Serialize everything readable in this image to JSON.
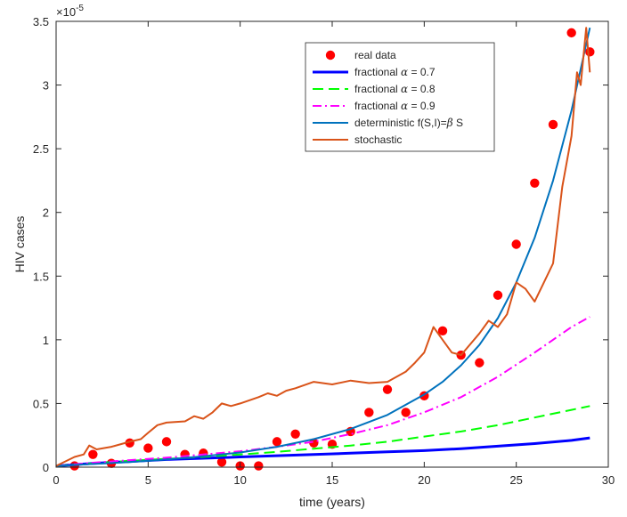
{
  "chart_data": {
    "type": "line",
    "xlabel": "time (years)",
    "ylabel": "HIV cases",
    "y_exponent_base": "×10",
    "y_exponent_power": "-5",
    "xlim": [
      0,
      30
    ],
    "ylim": [
      0,
      3.5
    ],
    "x_ticks": [
      0,
      5,
      10,
      15,
      20,
      25,
      30
    ],
    "y_ticks": [
      0,
      0.5,
      1,
      1.5,
      2,
      2.5,
      3,
      3.5
    ],
    "grid": false,
    "legend_position": "top-right",
    "series": [
      {
        "name": "real data",
        "kind": "scatter",
        "color": "#ff0000",
        "x": [
          1,
          2,
          3,
          4,
          5,
          6,
          7,
          8,
          9,
          10,
          11,
          12,
          13,
          14,
          15,
          16,
          17,
          18,
          19,
          20,
          21,
          22,
          23,
          24,
          25,
          26,
          27,
          28,
          29
        ],
        "y": [
          0.01,
          0.1,
          0.03,
          0.19,
          0.15,
          0.2,
          0.1,
          0.11,
          0.04,
          0.01,
          0.01,
          0.2,
          0.26,
          0.19,
          0.18,
          0.28,
          0.43,
          0.61,
          0.43,
          0.56,
          1.07,
          0.88,
          0.82,
          1.35,
          1.75,
          2.23,
          2.69,
          3.41,
          3.26
        ]
      },
      {
        "name_prefix": "fractional ",
        "name_greek": "α",
        "name_suffix": " = 0.7",
        "kind": "line",
        "dash": "solid",
        "color": "#0000ff",
        "width": 3,
        "x": [
          0,
          2,
          4,
          6,
          8,
          10,
          12,
          14,
          16,
          18,
          20,
          22,
          24,
          26,
          28,
          29
        ],
        "y": [
          0.01,
          0.03,
          0.045,
          0.06,
          0.07,
          0.08,
          0.09,
          0.1,
          0.11,
          0.12,
          0.13,
          0.145,
          0.165,
          0.185,
          0.21,
          0.23
        ]
      },
      {
        "name_prefix": "fractional ",
        "name_greek": "α",
        "name_suffix": " = 0.8",
        "kind": "line",
        "dash": "dashed",
        "color": "#00ff00",
        "width": 2,
        "x": [
          0,
          2,
          4,
          6,
          8,
          10,
          12,
          14,
          16,
          18,
          20,
          22,
          24,
          26,
          28,
          29
        ],
        "y": [
          0.01,
          0.03,
          0.05,
          0.065,
          0.08,
          0.1,
          0.12,
          0.145,
          0.17,
          0.2,
          0.24,
          0.28,
          0.33,
          0.39,
          0.45,
          0.48
        ]
      },
      {
        "name_prefix": "fractional ",
        "name_greek": "α",
        "name_suffix": " = 0.9",
        "kind": "line",
        "dash": "dashdot",
        "color": "#ff00ff",
        "width": 2,
        "x": [
          0,
          2,
          4,
          6,
          8,
          10,
          12,
          14,
          16,
          18,
          20,
          22,
          24,
          26,
          28,
          29
        ],
        "y": [
          0.01,
          0.035,
          0.055,
          0.075,
          0.1,
          0.125,
          0.16,
          0.2,
          0.26,
          0.33,
          0.43,
          0.55,
          0.71,
          0.9,
          1.1,
          1.18
        ]
      },
      {
        "name_prefix": "deterministic f(S,I)=",
        "name_greek": "β",
        "name_suffix": " S",
        "kind": "line",
        "dash": "solid",
        "color": "#0072bd",
        "width": 2,
        "x": [
          0,
          2,
          4,
          6,
          8,
          10,
          12,
          14,
          16,
          18,
          20,
          21,
          22,
          23,
          24,
          25,
          26,
          27,
          28,
          29
        ],
        "y": [
          0.01,
          0.025,
          0.04,
          0.06,
          0.085,
          0.115,
          0.16,
          0.22,
          0.3,
          0.41,
          0.57,
          0.67,
          0.8,
          0.96,
          1.17,
          1.45,
          1.8,
          2.25,
          2.8,
          3.45
        ]
      },
      {
        "name": "stochastic",
        "kind": "line",
        "dash": "solid",
        "color": "#d95319",
        "width": 2,
        "x": [
          0,
          1,
          1.5,
          1.8,
          2.2,
          3,
          4,
          4.6,
          5,
          5.5,
          6,
          7,
          7.5,
          8,
          8.5,
          9,
          9.5,
          10,
          11,
          11.5,
          12,
          12.5,
          13,
          14,
          15,
          16,
          17,
          18,
          19,
          19.5,
          20,
          20.5,
          21,
          21.5,
          22,
          23,
          23.5,
          24,
          24.5,
          25,
          25.5,
          26,
          26.5,
          27,
          27.5,
          28,
          28.3,
          28.5,
          28.8,
          29
        ],
        "y": [
          0.01,
          0.08,
          0.1,
          0.17,
          0.14,
          0.16,
          0.2,
          0.22,
          0.27,
          0.33,
          0.35,
          0.36,
          0.4,
          0.38,
          0.43,
          0.5,
          0.48,
          0.5,
          0.55,
          0.58,
          0.56,
          0.6,
          0.62,
          0.67,
          0.65,
          0.68,
          0.66,
          0.67,
          0.75,
          0.82,
          0.9,
          1.1,
          1.0,
          0.9,
          0.88,
          1.05,
          1.15,
          1.1,
          1.2,
          1.45,
          1.4,
          1.3,
          1.45,
          1.6,
          2.2,
          2.6,
          3.1,
          3.0,
          3.45,
          3.1
        ]
      }
    ]
  }
}
